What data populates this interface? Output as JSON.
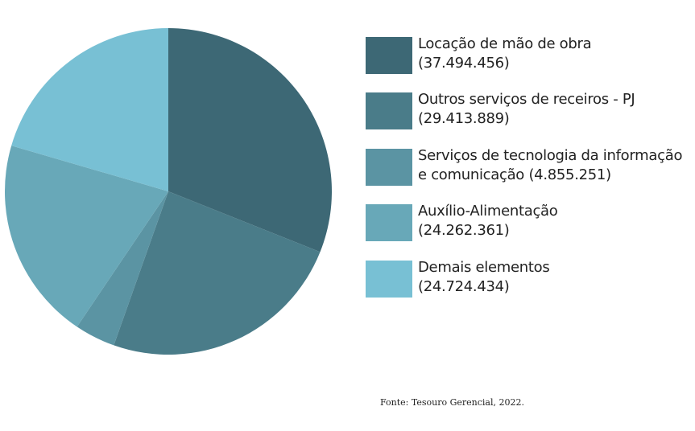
{
  "chart_data": {
    "type": "pie",
    "start_angle": "top",
    "direction": "clockwise",
    "legend_position": "right",
    "series": [
      {
        "name": "Locação de mão de obra",
        "label_line2": "(37.494.456)",
        "value": 37494456,
        "color": "#3d6875"
      },
      {
        "name": "Outros serviços de receiros - PJ",
        "label_line2": "(29.413.889)",
        "value": 29413889,
        "color": "#4a7c89"
      },
      {
        "name": "Serviços de tecnologia da informação",
        "label_line2": "e comunicação (4.855.251)",
        "value": 4855251,
        "color": "#5b94a3"
      },
      {
        "name": "Auxílio-Alimentação",
        "label_line2": "(24.262.361)",
        "value": 24262361,
        "color": "#68a8b8"
      },
      {
        "name": "Demais elementos",
        "label_line2": "(24.724.434)",
        "value": 24724434,
        "color": "#78c0d4"
      }
    ]
  },
  "source": "Fonte:  Tesouro Gerencial, 2022."
}
